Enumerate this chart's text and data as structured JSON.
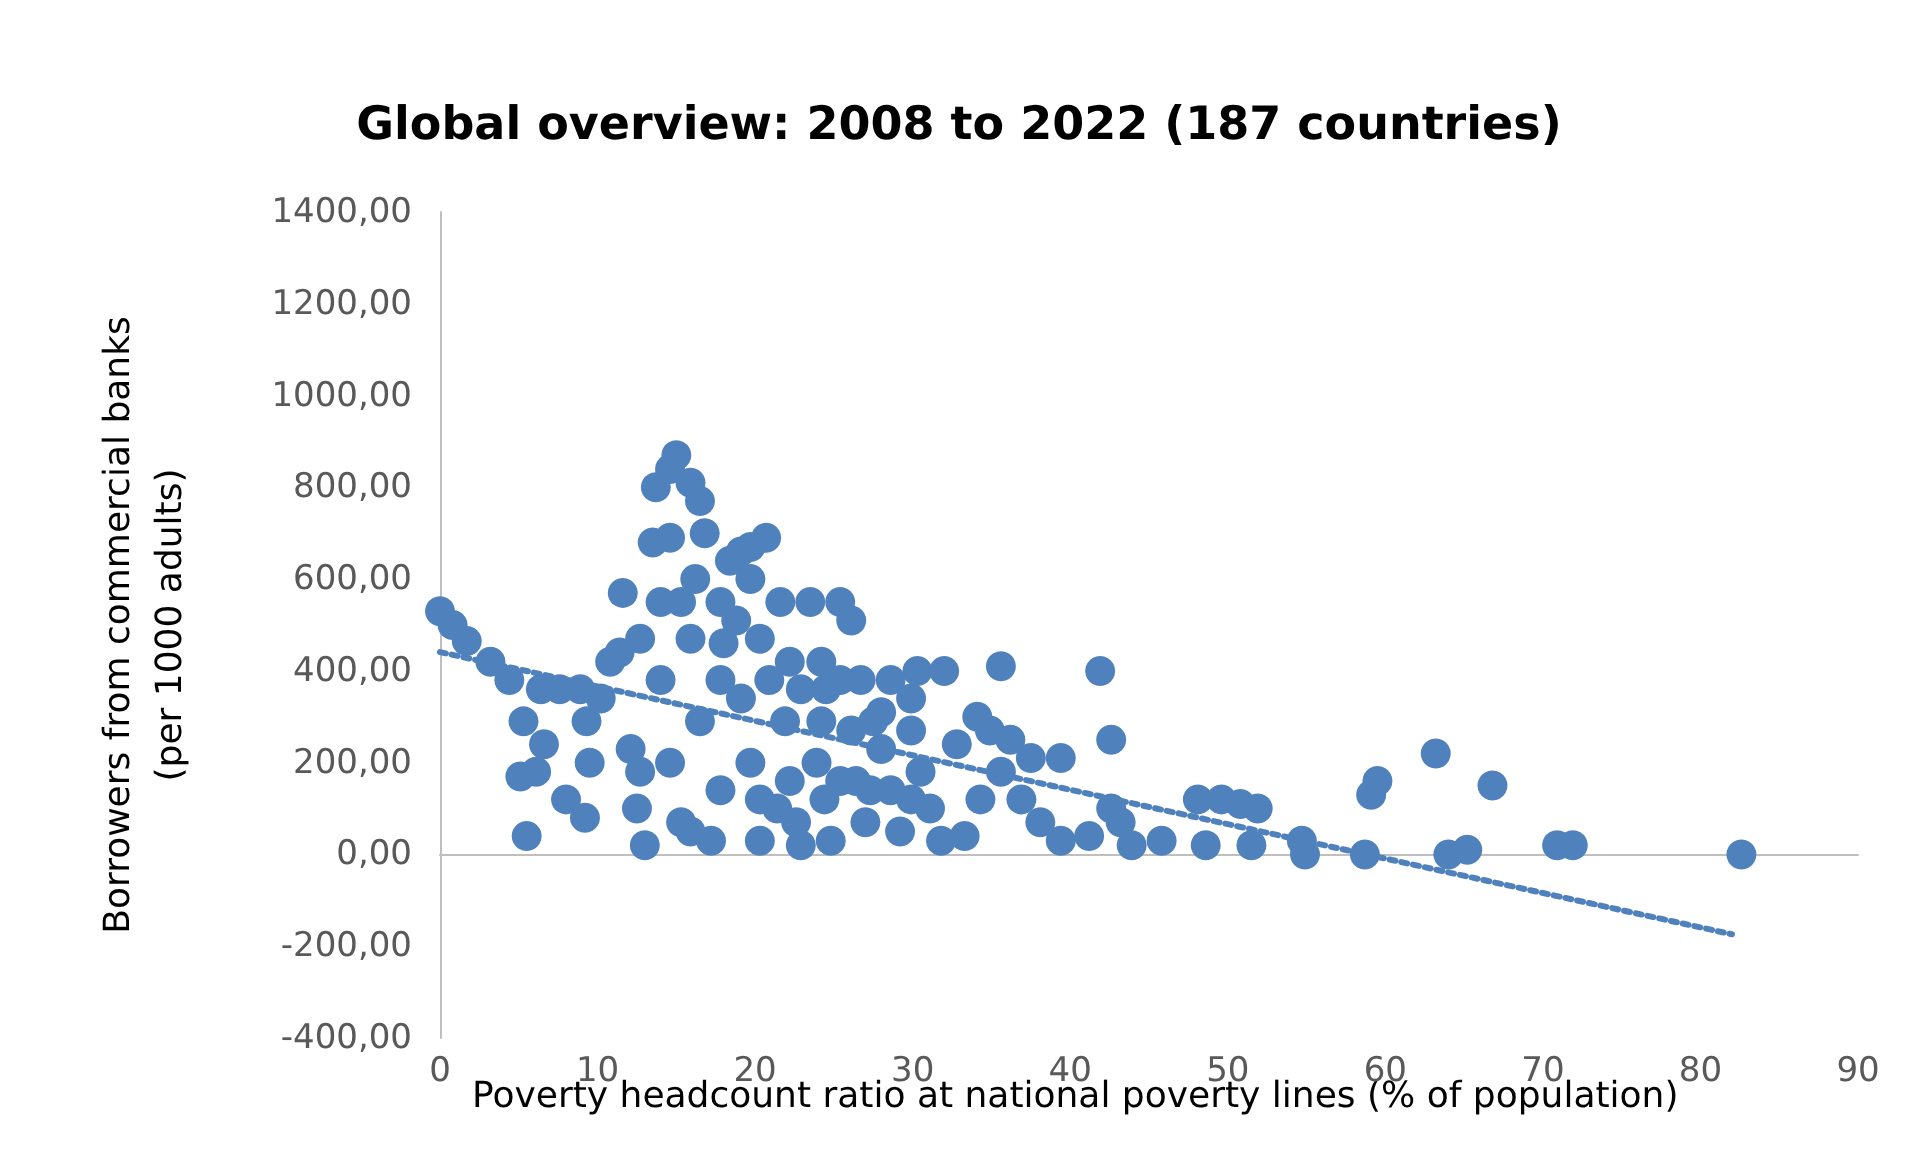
{
  "chart_data": {
    "type": "scatter",
    "title": "Global overview: 2008 to 2022 (187 countries)",
    "xlabel": "Poverty headcount ratio at national poverty lines (% of population)",
    "ylabel": "Borrowers from commercial banks\n(per 1000 adults)",
    "xlim": [
      0,
      90
    ],
    "xticks": [
      0,
      10,
      20,
      30,
      40,
      50,
      60,
      70,
      80,
      90
    ],
    "ylim": [
      -400,
      1400
    ],
    "yticks": [
      {
        "value": -400,
        "label": "-400,00"
      },
      {
        "value": -200,
        "label": "-200,00"
      },
      {
        "value": 0,
        "label": "0,00"
      },
      {
        "value": 200,
        "label": "200,00"
      },
      {
        "value": 400,
        "label": "400,00"
      },
      {
        "value": 600,
        "label": "600,00"
      },
      {
        "value": 800,
        "label": "800,00"
      },
      {
        "value": 1000,
        "label": "1000,00"
      },
      {
        "value": 1200,
        "label": "1200,00"
      },
      {
        "value": 1400,
        "label": "1400,00"
      }
    ],
    "marker": "circle",
    "series": [
      {
        "color": "#4f81bd",
        "x": [
          0,
          0.8,
          1.7,
          3.2,
          4.4,
          5.3,
          5.1,
          5.5,
          6.1,
          6.6,
          6.4,
          7.6,
          8.9,
          8,
          9.2,
          9.5,
          9.3,
          10.2,
          10.8,
          11.4,
          11.6,
          12.7,
          12.1,
          12.7,
          12.5,
          13,
          13.5,
          13.7,
          14.6,
          15,
          15.9,
          16.5,
          16.8,
          14.6,
          14,
          15.3,
          15.9,
          14,
          14.6,
          15.3,
          15.9,
          17.2,
          16.5,
          17.8,
          17.8,
          18.4,
          19.1,
          19.7,
          20.7,
          19.7,
          18.8,
          20.3,
          19.1,
          19.7,
          20.3,
          20.3,
          21.6,
          22.2,
          21.9,
          22.2,
          22.6,
          22.9,
          23.5,
          24.2,
          24.2,
          23.9,
          24.4,
          24.8,
          25.4,
          26.1,
          25.4,
          26.7,
          26.1,
          26.4,
          27,
          27.5,
          28,
          28.6,
          29.2,
          29.9,
          29.9,
          30.3,
          32,
          30.5,
          31.1,
          31.8,
          32.8,
          34.1,
          35.6,
          34.9,
          35.6,
          36.2,
          34.3,
          33.3,
          36.9,
          37.5,
          39.4,
          38.1,
          39.4,
          41.2,
          41.9,
          42.6,
          42.6,
          43.2,
          43.9,
          45.8,
          48.1,
          48.6,
          49.6,
          50.8,
          51.5,
          51.9,
          54.7,
          54.9,
          58.7,
          59.1,
          59.5,
          63.2,
          64,
          65.2,
          66.8,
          70.9,
          71.9,
          82.6,
          16.2,
          18,
          20.9,
          22.9,
          24.5,
          28.6,
          28,
          25.4,
          27.3,
          29.9,
          21.4,
          17.8
        ],
        "values": [
          530,
          500,
          465,
          420,
          380,
          290,
          170,
          40,
          180,
          240,
          360,
          360,
          360,
          120,
          80,
          200,
          290,
          340,
          420,
          440,
          570,
          470,
          230,
          180,
          100,
          20,
          680,
          800,
          840,
          870,
          810,
          770,
          700,
          690,
          550,
          550,
          470,
          380,
          200,
          70,
          50,
          30,
          290,
          380,
          550,
          640,
          660,
          670,
          690,
          600,
          510,
          470,
          340,
          200,
          120,
          30,
          550,
          420,
          290,
          160,
          70,
          20,
          550,
          420,
          290,
          200,
          120,
          30,
          550,
          510,
          380,
          380,
          270,
          160,
          70,
          290,
          230,
          140,
          50,
          270,
          340,
          400,
          400,
          180,
          100,
          30,
          240,
          300,
          410,
          270,
          180,
          250,
          120,
          40,
          120,
          210,
          210,
          70,
          30,
          40,
          400,
          250,
          100,
          70,
          20,
          30,
          120,
          20,
          120,
          110,
          20,
          100,
          30,
          0,
          0,
          130,
          160,
          220,
          0,
          10,
          150,
          20,
          20,
          0,
          600,
          460,
          380,
          360,
          360,
          380,
          310,
          160,
          140,
          120,
          100,
          140
        ]
      },
      {
        "type": "line",
        "color": "#4f81bd",
        "line_style": "dotted",
        "marker": "none",
        "x": [
          0,
          82
        ],
        "values": [
          441,
          -174
        ]
      }
    ]
  }
}
